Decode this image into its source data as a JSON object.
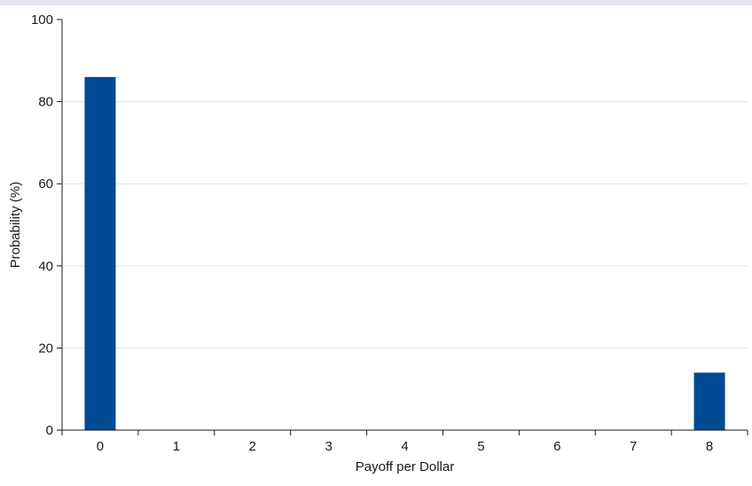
{
  "chart_data": {
    "type": "bar",
    "categories": [
      "0",
      "1",
      "2",
      "3",
      "4",
      "5",
      "6",
      "7",
      "8"
    ],
    "values": [
      86,
      0,
      0,
      0,
      0,
      0,
      0,
      0,
      14
    ],
    "title": "",
    "xlabel": "Payoff per Dollar",
    "ylabel": "Probability (%)",
    "ylim": [
      0,
      100
    ],
    "yticks": [
      0,
      20,
      40,
      60,
      80,
      100
    ],
    "grid": true,
    "bar_color": "#004a93",
    "grid_color": "#e3e3e3",
    "axis_color": "#1a1a1a"
  }
}
